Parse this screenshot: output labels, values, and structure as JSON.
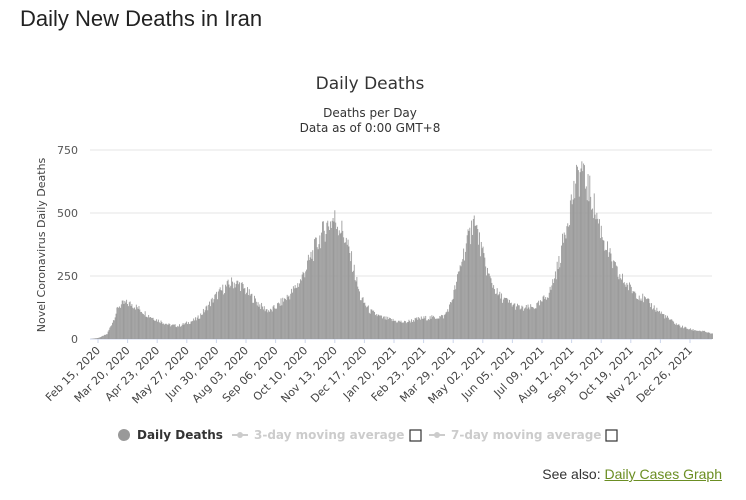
{
  "page": {
    "title": "Daily New Deaths in Iran"
  },
  "see_also": {
    "prefix": "See also:",
    "link_label": "Daily Cases Graph"
  },
  "legend": {
    "items": [
      {
        "label": "Daily Deaths",
        "active": true,
        "color": "#999999"
      },
      {
        "label": "3-day moving average",
        "active": false,
        "color": "#cccccc"
      },
      {
        "label": "7-day moving average",
        "active": false,
        "color": "#cccccc"
      }
    ]
  },
  "chart_data": {
    "type": "bar",
    "title": "Daily Deaths",
    "subtitle_lines": [
      "Deaths per Day",
      "Data as of 0:00 GMT+8"
    ],
    "ylabel": "Novel Coronavirus Daily Deaths",
    "xlabel": "",
    "ylim": [
      0,
      750
    ],
    "yticks": [
      0,
      250,
      500,
      750
    ],
    "grid": true,
    "bar_color": "#999999",
    "x_tick_labels": [
      "Feb 15, 2020",
      "Mar 20, 2020",
      "Apr 23, 2020",
      "May 27, 2020",
      "Jun 30, 2020",
      "Aug 03, 2020",
      "Sep 06, 2020",
      "Oct 10, 2020",
      "Nov 13, 2020",
      "Dec 17, 2020",
      "Jan 20, 2021",
      "Feb 23, 2021",
      "Mar 29, 2021",
      "May 02, 2021",
      "Jun 05, 2021",
      "Jul 09, 2021",
      "Aug 12, 2021",
      "Sep 15, 2021",
      "Oct 19, 2021",
      "Nov 22, 2021",
      "Dec 26, 2021"
    ],
    "x_start": "2020-02-15",
    "x_end": "2022-01-20",
    "series": [
      {
        "name": "Daily Deaths",
        "keyframes": [
          [
            "2020-02-15",
            0
          ],
          [
            "2020-02-25",
            5
          ],
          [
            "2020-03-05",
            20
          ],
          [
            "2020-03-12",
            75
          ],
          [
            "2020-03-18",
            130
          ],
          [
            "2020-03-25",
            142
          ],
          [
            "2020-04-02",
            138
          ],
          [
            "2020-04-10",
            120
          ],
          [
            "2020-04-20",
            95
          ],
          [
            "2020-05-01",
            75
          ],
          [
            "2020-05-15",
            55
          ],
          [
            "2020-05-25",
            52
          ],
          [
            "2020-06-05",
            65
          ],
          [
            "2020-06-15",
            80
          ],
          [
            "2020-06-25",
            120
          ],
          [
            "2020-07-05",
            165
          ],
          [
            "2020-07-15",
            200
          ],
          [
            "2020-07-25",
            225
          ],
          [
            "2020-08-03",
            215
          ],
          [
            "2020-08-15",
            170
          ],
          [
            "2020-08-28",
            125
          ],
          [
            "2020-09-06",
            110
          ],
          [
            "2020-09-15",
            135
          ],
          [
            "2020-09-28",
            175
          ],
          [
            "2020-10-10",
            230
          ],
          [
            "2020-10-20",
            310
          ],
          [
            "2020-11-01",
            400
          ],
          [
            "2020-11-10",
            455
          ],
          [
            "2020-11-18",
            475
          ],
          [
            "2020-11-28",
            420
          ],
          [
            "2020-12-08",
            300
          ],
          [
            "2020-12-17",
            165
          ],
          [
            "2020-12-28",
            110
          ],
          [
            "2021-01-10",
            85
          ],
          [
            "2021-01-25",
            72
          ],
          [
            "2021-02-05",
            66
          ],
          [
            "2021-02-15",
            75
          ],
          [
            "2021-02-25",
            82
          ],
          [
            "2021-03-10",
            85
          ],
          [
            "2021-03-22",
            90
          ],
          [
            "2021-03-29",
            135
          ],
          [
            "2021-04-05",
            220
          ],
          [
            "2021-04-12",
            330
          ],
          [
            "2021-04-20",
            410
          ],
          [
            "2021-04-24",
            450
          ],
          [
            "2021-04-28",
            430
          ],
          [
            "2021-05-04",
            340
          ],
          [
            "2021-05-12",
            245
          ],
          [
            "2021-05-22",
            175
          ],
          [
            "2021-06-05",
            140
          ],
          [
            "2021-06-18",
            120
          ],
          [
            "2021-07-01",
            125
          ],
          [
            "2021-07-09",
            140
          ],
          [
            "2021-07-20",
            190
          ],
          [
            "2021-07-30",
            300
          ],
          [
            "2021-08-06",
            430
          ],
          [
            "2021-08-12",
            530
          ],
          [
            "2021-08-18",
            610
          ],
          [
            "2021-08-24",
            655
          ],
          [
            "2021-08-30",
            620
          ],
          [
            "2021-09-05",
            560
          ],
          [
            "2021-09-15",
            440
          ],
          [
            "2021-09-25",
            330
          ],
          [
            "2021-10-05",
            255
          ],
          [
            "2021-10-19",
            200
          ],
          [
            "2021-11-01",
            165
          ],
          [
            "2021-11-15",
            125
          ],
          [
            "2021-11-22",
            105
          ],
          [
            "2021-12-05",
            70
          ],
          [
            "2021-12-15",
            50
          ],
          [
            "2021-12-26",
            38
          ],
          [
            "2022-01-10",
            30
          ],
          [
            "2022-01-20",
            20
          ]
        ],
        "spikes": [
          [
            "2020-11-16",
            480
          ],
          [
            "2021-04-25",
            490
          ],
          [
            "2021-08-25",
            705
          ],
          [
            "2021-08-28",
            690
          ],
          [
            "2021-08-21",
            670
          ],
          [
            "2021-04-22",
            470
          ]
        ]
      }
    ]
  }
}
